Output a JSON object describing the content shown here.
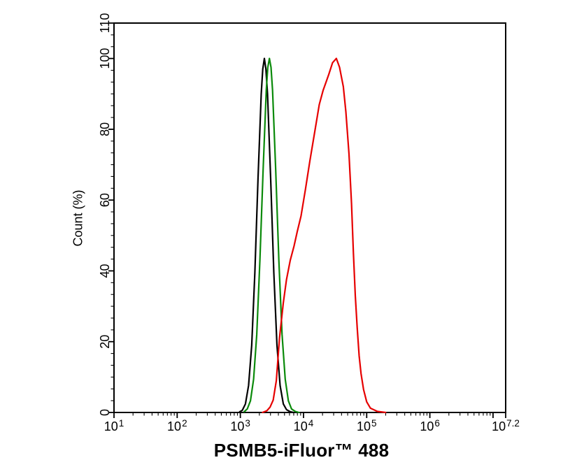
{
  "figure": {
    "xlabel": "PSMB5-iFluor™ 488",
    "ylabel": "Count (%)"
  },
  "chart_data": {
    "type": "line",
    "subtype": "flow-cytometry-histogram-overlay",
    "title": "",
    "xlabel": "PSMB5-iFluor™ 488",
    "ylabel": "Count (%)",
    "x_scale": "log10",
    "x_range_log10": [
      1,
      7.2
    ],
    "y_range": [
      0,
      110
    ],
    "grid": false,
    "legend": "none",
    "background": "#ffffff",
    "axis_color": "#000000",
    "x_major_ticks_log10": [
      1,
      2,
      3,
      4,
      5,
      6,
      7,
      7.2
    ],
    "x_tick_labels": [
      {
        "log": 1,
        "base": "10",
        "exp": "1"
      },
      {
        "log": 2,
        "base": "10",
        "exp": "2"
      },
      {
        "log": 3,
        "base": "10",
        "exp": "3"
      },
      {
        "log": 4,
        "base": "10",
        "exp": "4"
      },
      {
        "log": 5,
        "base": "10",
        "exp": "5"
      },
      {
        "log": 6,
        "base": "10",
        "exp": "6"
      },
      {
        "log": 7.2,
        "base": "10",
        "exp": "7.2"
      }
    ],
    "x_minor_tick_rule": "log positions 2-9 within each decade from 10^1 to 10^7",
    "y_major_ticks": [
      0,
      20,
      40,
      60,
      80,
      100,
      110
    ],
    "y_tick_labels": [
      "0",
      "20",
      "40",
      "60",
      "80",
      "100",
      "110"
    ],
    "y_minor_divisions_per_major": 6,
    "series": [
      {
        "name": "black",
        "color": "#000000",
        "peak_log10_x": 3.38,
        "peak_x_approx": 2400,
        "peak_pct": 100,
        "points": [
          [
            2.99,
            0.2
          ],
          [
            3.03,
            0.6
          ],
          [
            3.08,
            2.4
          ],
          [
            3.13,
            7.6
          ],
          [
            3.18,
            19
          ],
          [
            3.23,
            39.5
          ],
          [
            3.28,
            66
          ],
          [
            3.33,
            90
          ],
          [
            3.355,
            97
          ],
          [
            3.38,
            100
          ],
          [
            3.405,
            97
          ],
          [
            3.43,
            90
          ],
          [
            3.48,
            66
          ],
          [
            3.53,
            39.5
          ],
          [
            3.58,
            19
          ],
          [
            3.63,
            7.6
          ],
          [
            3.68,
            2.4
          ],
          [
            3.73,
            0.8
          ],
          [
            3.79,
            0.2
          ],
          [
            3.84,
            0
          ]
        ]
      },
      {
        "name": "green",
        "color": "#0a8a0a",
        "peak_log10_x": 3.46,
        "peak_x_approx": 2900,
        "peak_pct": 100,
        "points": [
          [
            3.06,
            0.2
          ],
          [
            3.11,
            1.0
          ],
          [
            3.16,
            3.3
          ],
          [
            3.21,
            9.4
          ],
          [
            3.26,
            22
          ],
          [
            3.31,
            43
          ],
          [
            3.36,
            68.5
          ],
          [
            3.41,
            91
          ],
          [
            3.435,
            97.5
          ],
          [
            3.46,
            100
          ],
          [
            3.485,
            97.5
          ],
          [
            3.51,
            91
          ],
          [
            3.56,
            68.5
          ],
          [
            3.61,
            43
          ],
          [
            3.66,
            22
          ],
          [
            3.71,
            9.4
          ],
          [
            3.76,
            3.3
          ],
          [
            3.81,
            1.0
          ],
          [
            3.87,
            0.3
          ],
          [
            3.93,
            0
          ]
        ]
      },
      {
        "name": "red",
        "color": "#e60000",
        "peak_log10_x": 4.52,
        "peak_x_approx": 33000,
        "peak_pct": 100,
        "points": [
          [
            3.35,
            0
          ],
          [
            3.42,
            0.5
          ],
          [
            3.47,
            1.5
          ],
          [
            3.52,
            3.5
          ],
          [
            3.57,
            9
          ],
          [
            3.62,
            21
          ],
          [
            3.68,
            31
          ],
          [
            3.73,
            37.5
          ],
          [
            3.79,
            43
          ],
          [
            3.85,
            47
          ],
          [
            3.9,
            51
          ],
          [
            3.96,
            55.5
          ],
          [
            4.03,
            63
          ],
          [
            4.1,
            71
          ],
          [
            4.18,
            79.5
          ],
          [
            4.25,
            87
          ],
          [
            4.31,
            91
          ],
          [
            4.35,
            93
          ],
          [
            4.4,
            95.5
          ],
          [
            4.46,
            98.8
          ],
          [
            4.52,
            100
          ],
          [
            4.57,
            97.5
          ],
          [
            4.63,
            92
          ],
          [
            4.67,
            85
          ],
          [
            4.72,
            73
          ],
          [
            4.76,
            59
          ],
          [
            4.79,
            45
          ],
          [
            4.82,
            33
          ],
          [
            4.85,
            24
          ],
          [
            4.88,
            16
          ],
          [
            4.91,
            11
          ],
          [
            4.95,
            6.5
          ],
          [
            5.0,
            3
          ],
          [
            5.06,
            1.2
          ],
          [
            5.17,
            0.3
          ],
          [
            5.3,
            0
          ]
        ]
      }
    ]
  }
}
